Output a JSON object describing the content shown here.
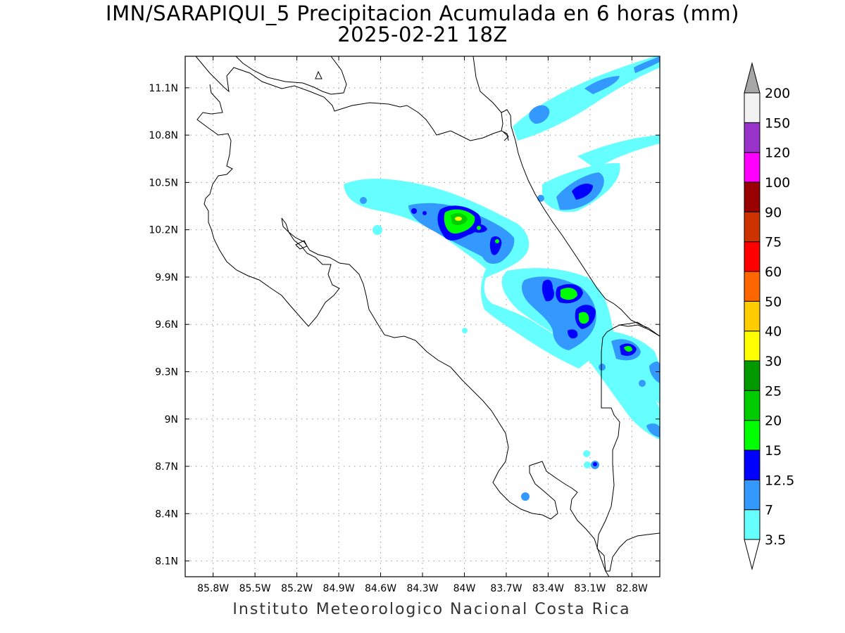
{
  "title": {
    "line1": "IMN/SARAPIQUI_5 Precipitacion Acumulada en 6 horas (mm)",
    "line2": "2025-02-21 18Z"
  },
  "footer": "Instituto Meteorologico Nacional Costa Rica",
  "map": {
    "lon_range": [
      -86.0,
      -82.6
    ],
    "lat_range": [
      8.0,
      11.3
    ],
    "lon_ticks": [
      {
        "value": -85.8,
        "label": "85.8W"
      },
      {
        "value": -85.5,
        "label": "85.5W"
      },
      {
        "value": -85.2,
        "label": "85.2W"
      },
      {
        "value": -84.9,
        "label": "84.9W"
      },
      {
        "value": -84.6,
        "label": "84.6W"
      },
      {
        "value": -84.3,
        "label": "84.3W"
      },
      {
        "value": -84.0,
        "label": "84W"
      },
      {
        "value": -83.7,
        "label": "83.7W"
      },
      {
        "value": -83.4,
        "label": "83.4W"
      },
      {
        "value": -83.1,
        "label": "83.1W"
      },
      {
        "value": -82.8,
        "label": "82.8W"
      }
    ],
    "lat_ticks": [
      {
        "value": 11.1,
        "label": "11.1N"
      },
      {
        "value": 10.8,
        "label": "10.8N"
      },
      {
        "value": 10.5,
        "label": "10.5N"
      },
      {
        "value": 10.2,
        "label": "10.2N"
      },
      {
        "value": 9.9,
        "label": "9.9N"
      },
      {
        "value": 9.6,
        "label": "9.6N"
      },
      {
        "value": 9.3,
        "label": "9.3N"
      },
      {
        "value": 9.0,
        "label": "9N"
      },
      {
        "value": 8.7,
        "label": "8.7N"
      },
      {
        "value": 8.4,
        "label": "8.4N"
      },
      {
        "value": 8.1,
        "label": "8.1N"
      }
    ],
    "grid": true
  },
  "colorbar": {
    "labels": [
      "3.5",
      "7",
      "12.5",
      "15",
      "20",
      "25",
      "30",
      "40",
      "50",
      "60",
      "75",
      "90",
      "100",
      "120",
      "150",
      "200"
    ],
    "colors": [
      "#66ffff",
      "#3399ff",
      "#0000ff",
      "#00ff00",
      "#00cc00",
      "#009900",
      "#ffff00",
      "#ffcc00",
      "#ff6600",
      "#ff0000",
      "#cc3300",
      "#990000",
      "#ff00ff",
      "#9933cc",
      "#f2f2f2"
    ],
    "over_color": "#a6a6a6",
    "under_color": "#ffffff"
  },
  "precip_colors": {
    "light": "#66ffff",
    "moderate": "#3399ff",
    "heavy": "#0000ff",
    "very_heavy": "#00ff00",
    "intense": "#00cc00",
    "peak": "#ffff00"
  }
}
